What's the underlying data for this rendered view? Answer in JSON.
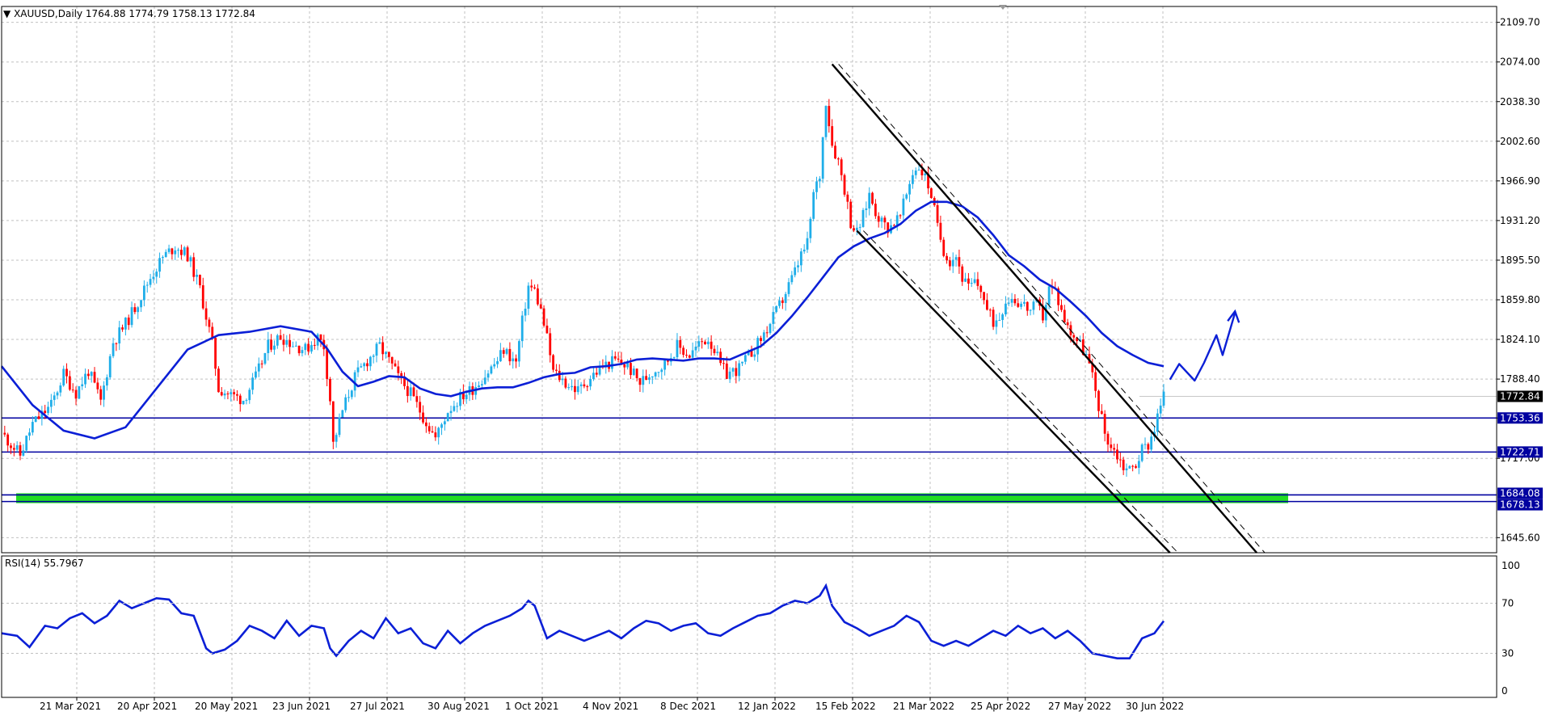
{
  "header": {
    "symbol": "XAUUSD,Daily",
    "open": "1764.88",
    "high": "1774.79",
    "low": "1758.13",
    "close": "1772.84"
  },
  "rsi_label": {
    "name": "RSI(14)",
    "value": "55.7967"
  },
  "colors": {
    "bull": "#1faee9",
    "bear": "#ff0000",
    "ma": "#0b1fd6",
    "level": "#0000a0",
    "support_zone": "#22dd22",
    "channel": "#000000",
    "grid": "#c0c0c0",
    "rsi": "#0b1fd6"
  },
  "chart_data": [
    {
      "type": "candlestick",
      "title": "XAUUSD,Daily",
      "x_labels": [
        "21 Mar 2021",
        "20 Apr 2021",
        "20 May 2021",
        "23 Jun 2021",
        "27 Jul 2021",
        "30 Aug 2021",
        "1 Oct 2021",
        "4 Nov 2021",
        "8 Dec 2021",
        "12 Jan 2022",
        "15 Feb 2022",
        "21 Mar 2022",
        "25 Apr 2022",
        "27 May 2022",
        "30 Jun 2022"
      ],
      "y_ticks": [
        "2109.70",
        "2074.00",
        "2038.30",
        "2002.60",
        "1966.90",
        "1931.20",
        "1895.50",
        "1859.80",
        "1824.10",
        "1788.40",
        "1753.36",
        "1717.00",
        "1645.60"
      ],
      "ylim": [
        1632,
        2124
      ],
      "grid": true,
      "last_price": "1772.84",
      "price_tags": [
        "1772.84",
        "1753.36",
        "1722.71",
        "1684.08",
        "1678.13"
      ],
      "horizontal_levels": [
        1753.36,
        1722.71,
        1684.08,
        1678.13
      ],
      "support_zone": [
        1678.13,
        1684.08
      ],
      "close_path": [
        [
          0,
          1740
        ],
        [
          6,
          1720
        ],
        [
          10,
          1748
        ],
        [
          16,
          1765
        ],
        [
          20,
          1793
        ],
        [
          24,
          1776
        ],
        [
          28,
          1796
        ],
        [
          32,
          1768
        ],
        [
          36,
          1822
        ],
        [
          40,
          1838
        ],
        [
          44,
          1858
        ],
        [
          48,
          1880
        ],
        [
          52,
          1898
        ],
        [
          56,
          1908
        ],
        [
          60,
          1900
        ],
        [
          64,
          1870
        ],
        [
          68,
          1820
        ],
        [
          70,
          1780
        ],
        [
          74,
          1774
        ],
        [
          78,
          1770
        ],
        [
          82,
          1790
        ],
        [
          86,
          1818
        ],
        [
          90,
          1827
        ],
        [
          94,
          1820
        ],
        [
          98,
          1815
        ],
        [
          102,
          1826
        ],
        [
          104,
          1818
        ],
        [
          106,
          1770
        ],
        [
          107,
          1730
        ],
        [
          110,
          1760
        ],
        [
          114,
          1790
        ],
        [
          118,
          1805
        ],
        [
          122,
          1818
        ],
        [
          126,
          1800
        ],
        [
          128,
          1790
        ],
        [
          132,
          1775
        ],
        [
          136,
          1755
        ],
        [
          140,
          1735
        ],
        [
          144,
          1760
        ],
        [
          148,
          1772
        ],
        [
          152,
          1780
        ],
        [
          156,
          1792
        ],
        [
          160,
          1805
        ],
        [
          162,
          1815
        ],
        [
          166,
          1803
        ],
        [
          168,
          1840
        ],
        [
          170,
          1872
        ],
        [
          172,
          1868
        ],
        [
          174,
          1850
        ],
        [
          176,
          1825
        ],
        [
          178,
          1795
        ],
        [
          182,
          1785
        ],
        [
          186,
          1778
        ],
        [
          190,
          1790
        ],
        [
          194,
          1800
        ],
        [
          198,
          1805
        ],
        [
          202,
          1800
        ],
        [
          206,
          1785
        ],
        [
          210,
          1795
        ],
        [
          214,
          1802
        ],
        [
          218,
          1818
        ],
        [
          222,
          1810
        ],
        [
          226,
          1822
        ],
        [
          228,
          1825
        ],
        [
          230,
          1815
        ],
        [
          232,
          1800
        ],
        [
          234,
          1793
        ],
        [
          238,
          1798
        ],
        [
          240,
          1805
        ],
        [
          244,
          1820
        ],
        [
          248,
          1838
        ],
        [
          252,
          1860
        ],
        [
          256,
          1885
        ],
        [
          258,
          1900
        ],
        [
          260,
          1910
        ],
        [
          262,
          1955
        ],
        [
          264,
          1972
        ],
        [
          266,
          2040
        ],
        [
          268,
          2000
        ],
        [
          270,
          1985
        ],
        [
          272,
          1960
        ],
        [
          274,
          1930
        ],
        [
          276,
          1920
        ],
        [
          278,
          1935
        ],
        [
          280,
          1955
        ],
        [
          282,
          1940
        ],
        [
          284,
          1930
        ],
        [
          286,
          1925
        ],
        [
          290,
          1935
        ],
        [
          292,
          1955
        ],
        [
          294,
          1975
        ],
        [
          296,
          1980
        ],
        [
          298,
          1970
        ],
        [
          300,
          1955
        ],
        [
          302,
          1925
        ],
        [
          304,
          1905
        ],
        [
          306,
          1895
        ],
        [
          308,
          1900
        ],
        [
          310,
          1880
        ],
        [
          312,
          1870
        ],
        [
          314,
          1875
        ],
        [
          316,
          1870
        ],
        [
          318,
          1850
        ],
        [
          320,
          1840
        ],
        [
          322,
          1845
        ],
        [
          324,
          1860
        ],
        [
          326,
          1862
        ],
        [
          328,
          1858
        ],
        [
          330,
          1855
        ],
        [
          332,
          1850
        ],
        [
          334,
          1855
        ],
        [
          336,
          1845
        ],
        [
          338,
          1870
        ],
        [
          340,
          1868
        ],
        [
          342,
          1850
        ],
        [
          344,
          1835
        ],
        [
          346,
          1828
        ],
        [
          348,
          1820
        ],
        [
          350,
          1810
        ],
        [
          352,
          1790
        ],
        [
          354,
          1765
        ],
        [
          356,
          1740
        ],
        [
          358,
          1728
        ],
        [
          360,
          1720
        ],
        [
          362,
          1710
        ],
        [
          364,
          1707
        ],
        [
          366,
          1712
        ],
        [
          368,
          1725
        ],
        [
          370,
          1730
        ],
        [
          372,
          1745
        ],
        [
          374,
          1765
        ],
        [
          375,
          1772.84
        ]
      ],
      "moving_average": [
        [
          0,
          1800
        ],
        [
          10,
          1765
        ],
        [
          20,
          1742
        ],
        [
          30,
          1735
        ],
        [
          40,
          1745
        ],
        [
          50,
          1780
        ],
        [
          60,
          1815
        ],
        [
          70,
          1828
        ],
        [
          80,
          1831
        ],
        [
          90,
          1836
        ],
        [
          100,
          1831
        ],
        [
          105,
          1816
        ],
        [
          110,
          1795
        ],
        [
          115,
          1782
        ],
        [
          120,
          1786
        ],
        [
          125,
          1791
        ],
        [
          130,
          1790
        ],
        [
          135,
          1780
        ],
        [
          140,
          1775
        ],
        [
          145,
          1773
        ],
        [
          150,
          1777
        ],
        [
          155,
          1780
        ],
        [
          160,
          1781
        ],
        [
          165,
          1781
        ],
        [
          170,
          1785
        ],
        [
          175,
          1790
        ],
        [
          180,
          1793
        ],
        [
          185,
          1794
        ],
        [
          190,
          1799
        ],
        [
          195,
          1800
        ],
        [
          200,
          1802
        ],
        [
          205,
          1806
        ],
        [
          210,
          1807
        ],
        [
          215,
          1806
        ],
        [
          220,
          1805
        ],
        [
          225,
          1807
        ],
        [
          230,
          1807
        ],
        [
          235,
          1806
        ],
        [
          240,
          1812
        ],
        [
          245,
          1818
        ],
        [
          250,
          1830
        ],
        [
          255,
          1845
        ],
        [
          260,
          1862
        ],
        [
          265,
          1880
        ],
        [
          270,
          1898
        ],
        [
          275,
          1908
        ],
        [
          280,
          1915
        ],
        [
          285,
          1920
        ],
        [
          290,
          1928
        ],
        [
          295,
          1940
        ],
        [
          300,
          1948
        ],
        [
          305,
          1948
        ],
        [
          310,
          1944
        ],
        [
          315,
          1934
        ],
        [
          320,
          1918
        ],
        [
          325,
          1900
        ],
        [
          330,
          1890
        ],
        [
          335,
          1878
        ],
        [
          340,
          1870
        ],
        [
          345,
          1858
        ],
        [
          350,
          1845
        ],
        [
          355,
          1830
        ],
        [
          360,
          1818
        ],
        [
          365,
          1810
        ],
        [
          370,
          1803
        ],
        [
          375,
          1800
        ]
      ],
      "channel_upper": {
        "from": [
          268,
          2072
        ],
        "to": [
          405,
          1632
        ]
      },
      "channel_lower": {
        "from": [
          276,
          1922
        ],
        "to": [
          377,
          1632
        ]
      },
      "projection_arrow": [
        [
          377,
          1788
        ],
        [
          380,
          1802
        ],
        [
          385,
          1787
        ],
        [
          388,
          1803
        ],
        [
          392,
          1828
        ],
        [
          394,
          1810
        ],
        [
          398,
          1848
        ]
      ]
    },
    {
      "type": "line",
      "title": "RSI(14)",
      "value_label": "55.7967",
      "y_ticks": [
        "100",
        "70",
        "30",
        "0"
      ],
      "ylim": [
        0,
        100
      ],
      "series": [
        {
          "name": "RSI(14)",
          "x": [
            0,
            5,
            9,
            14,
            18,
            22,
            26,
            30,
            34,
            38,
            42,
            46,
            50,
            54,
            58,
            62,
            66,
            68,
            72,
            76,
            80,
            84,
            88,
            92,
            96,
            100,
            104,
            106,
            108,
            112,
            116,
            120,
            124,
            128,
            132,
            136,
            140,
            144,
            148,
            152,
            156,
            160,
            164,
            168,
            170,
            172,
            176,
            180,
            184,
            188,
            192,
            196,
            200,
            204,
            208,
            212,
            216,
            220,
            224,
            228,
            232,
            236,
            240,
            244,
            248,
            252,
            256,
            260,
            264,
            266,
            268,
            272,
            276,
            280,
            284,
            288,
            292,
            296,
            300,
            304,
            308,
            312,
            316,
            320,
            324,
            328,
            332,
            336,
            340,
            344,
            348,
            352,
            356,
            360,
            364,
            368,
            372,
            375
          ],
          "values": [
            46,
            44,
            35,
            52,
            50,
            58,
            62,
            54,
            60,
            72,
            66,
            70,
            74,
            73,
            62,
            60,
            34,
            30,
            33,
            40,
            52,
            48,
            42,
            56,
            44,
            52,
            50,
            34,
            28,
            40,
            48,
            42,
            58,
            46,
            50,
            38,
            34,
            48,
            38,
            46,
            52,
            56,
            60,
            66,
            72,
            68,
            42,
            48,
            44,
            40,
            44,
            48,
            42,
            50,
            56,
            54,
            48,
            52,
            54,
            46,
            44,
            50,
            55,
            60,
            62,
            68,
            72,
            70,
            76,
            84,
            68,
            55,
            50,
            44,
            48,
            52,
            60,
            55,
            40,
            36,
            40,
            36,
            42,
            48,
            44,
            52,
            46,
            50,
            42,
            48,
            40,
            30,
            28,
            26,
            26,
            42,
            46,
            55.8
          ]
        }
      ]
    }
  ]
}
